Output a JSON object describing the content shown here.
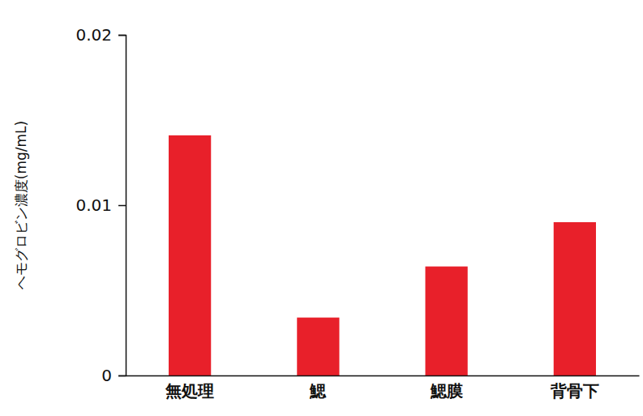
{
  "chart_data": {
    "type": "bar",
    "y_label": "ヘモグロビン濃度(mg/mL)",
    "categories": [
      "無処理",
      "鰓",
      "鰓膜",
      "背骨下"
    ],
    "values": [
      0.0141,
      0.0034,
      0.0064,
      0.009
    ],
    "color": "#e8202a",
    "ylim": [
      0,
      0.02
    ],
    "yticks": [
      0,
      0.01,
      0.02
    ],
    "grid": false
  }
}
